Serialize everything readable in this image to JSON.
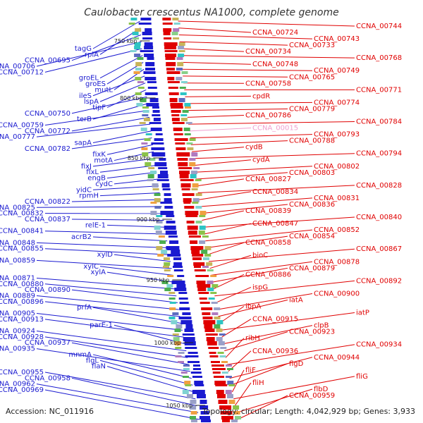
{
  "title": "Caulobacter crescentus NA1000, complete genome",
  "footer": {
    "accession": "Accession: NC_011916",
    "summary": "Topology: circular; Length: 4,042,929 bp; Genes: 3,933"
  },
  "colors": {
    "forward": "#e00000",
    "reverse": "#1a1ad0",
    "pseudo": "#f0a0d0",
    "backbone": "#8c8c8c"
  },
  "ticks": [
    "750 kbp",
    "800 kbp",
    "850 kbp",
    "900 kbp",
    "950 kbp",
    "1000 kbp",
    "1050 kbp"
  ],
  "left_labels": [
    "tagG",
    "rplA",
    "CCNA_00695",
    "CCNA_00706",
    "CCNA_00712",
    "groEL",
    "groES",
    "mutL",
    "ileS",
    "lspA",
    "tipF",
    "CCNA_00750",
    "terB",
    "CCNA_00759",
    "CCNA_00772",
    "CCNA_00777",
    "sapA",
    "CCNA_00782",
    "fixK",
    "motA",
    "fixJ",
    "fixL",
    "engB",
    "cydC",
    "yidC",
    "rpmH",
    "CCNA_00822",
    "CCNA_00825",
    "CCNA_00832",
    "CCNA_00837",
    "relE-1",
    "CCNA_00841",
    "acrB2",
    "CCNA_00848",
    "CCNA_00855",
    "xylD",
    "CCNA_00859",
    "xylC",
    "xylA",
    "CCNA_00871",
    "CCNA_00880",
    "CCNA_00890",
    "CCNA_00889",
    "CCNA_00896",
    "prfA",
    "CCNA_00905",
    "CCNA_00913",
    "parE-1",
    "CCNA_00924",
    "CCNA_00928",
    "CCNA_00937",
    "CCNA_00935",
    "mnmA",
    "flgL",
    "flaN",
    "CCNA_00955",
    "CCNA_00958",
    "CCNA_00962",
    "CCNA_00969"
  ],
  "right_labels": [
    "CCNA_00744",
    "CCNA_00724",
    "CCNA_00743",
    "CCNA_00733",
    "CCNA_00734",
    "CCNA_00768",
    "CCNA_00748",
    "CCNA_00749",
    "CCNA_00765",
    "CCNA_00758",
    "CCNA_00771",
    "cpdR",
    "CCNA_00774",
    "CCNA_00779",
    "CCNA_00786",
    "CCNA_00784",
    "CCNA_00015",
    "CCNA_00793",
    "CCNA_00788",
    "cydB",
    "CCNA_00794",
    "cydA",
    "CCNA_00802",
    "CCNA_00803",
    "CCNA_00827",
    "CCNA_00828",
    "CCNA_00834",
    "CCNA_00831",
    "CCNA_00836",
    "CCNA_00839",
    "CCNA_00840",
    "CCNA_00847",
    "CCNA_00852",
    "CCNA_00854",
    "CCNA_00858",
    "CCNA_00867",
    "bioC",
    "CCNA_00878",
    "CCNA_00879",
    "CCNA_00886",
    "CCNA_00892",
    "ispG",
    "CCNA_00900",
    "iatA",
    "ibpA",
    "iatP",
    "CCNA_00915",
    "clpB",
    "CCNA_00923",
    "ribH",
    "CCNA_00934",
    "CCNA_00936",
    "CCNA_00944",
    "flgD",
    "fliF",
    "fliG",
    "fliH",
    "flbD",
    "CCNA_00959"
  ],
  "pseudo_label": "CCNA_00015"
}
